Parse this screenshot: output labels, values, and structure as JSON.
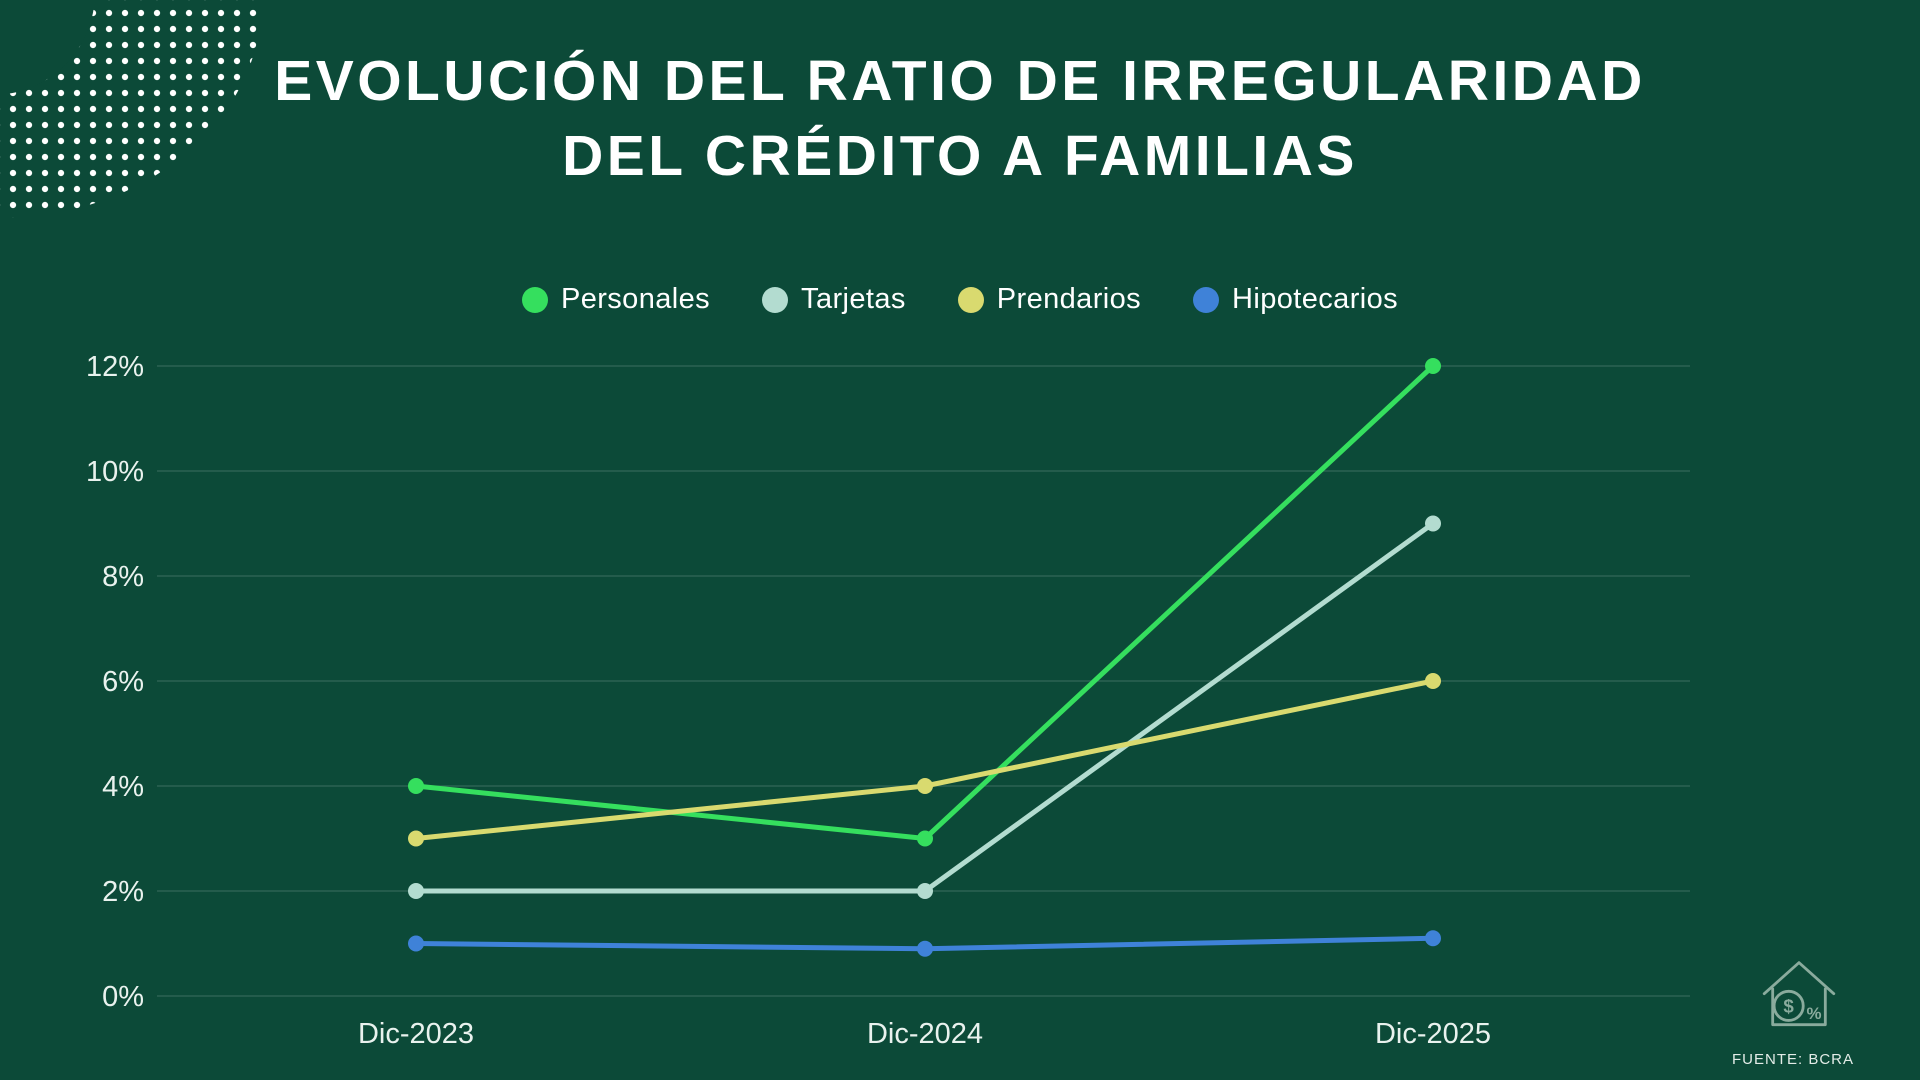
{
  "page": {
    "background_color": "#0c4a38",
    "title_line1": "EVOLUCIÓN DEL RATIO DE IRREGULARIDAD",
    "title_line2": "DEL CRÉDITO A FAMILIAS",
    "source": "FUENTE: BCRA"
  },
  "icons": {
    "decoration": "dot-grid-decoration",
    "footer": "house-finance-icon"
  },
  "chart_data": {
    "type": "line",
    "title": "Evolución del ratio de irregularidad del crédito a familias",
    "categories": [
      "Dic-2023",
      "Dic-2024",
      "Dic-2025"
    ],
    "series": [
      {
        "name": "Personales",
        "color": "#35df5e",
        "values": [
          4,
          3,
          12
        ]
      },
      {
        "name": "Tarjetas",
        "color": "#b3dcd0",
        "values": [
          2,
          2,
          9
        ]
      },
      {
        "name": "Prendarios",
        "color": "#d9da6f",
        "values": [
          3,
          4,
          6
        ]
      },
      {
        "name": "Hipotecarios",
        "color": "#3f82d8",
        "values": [
          1,
          0.9,
          1.1
        ]
      }
    ],
    "ylim": [
      0,
      12
    ],
    "ytick_step": 2,
    "ytick_labels": [
      "0%",
      "2%",
      "4%",
      "6%",
      "8%",
      "10%",
      "12%"
    ],
    "xlabel": "",
    "ylabel": "",
    "grid": true,
    "legend_position": "top",
    "marker": "circle"
  }
}
